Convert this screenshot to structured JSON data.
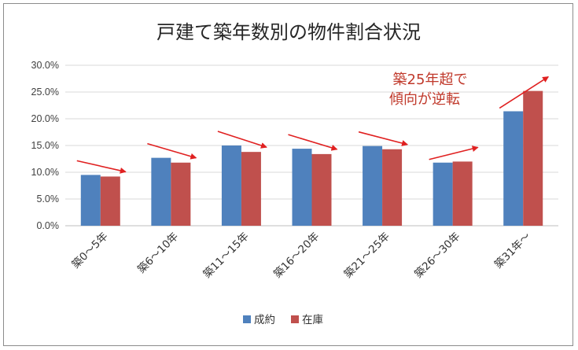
{
  "chart_data": {
    "type": "bar",
    "title": "戸建て築年数別の物件割合状況",
    "categories": [
      "築0～5年",
      "築6～10年",
      "築11～15年",
      "築16～20年",
      "築21～25年",
      "築26～30年",
      "築31年～"
    ],
    "series": [
      {
        "name": "成約",
        "color": "#4f81bd",
        "values": [
          9.5,
          12.7,
          15.0,
          14.4,
          14.9,
          11.8,
          21.4
        ]
      },
      {
        "name": "在庫",
        "color": "#c0504d",
        "values": [
          9.2,
          11.8,
          13.8,
          13.4,
          14.3,
          12.0,
          25.2
        ]
      }
    ],
    "ylim": [
      0,
      30
    ],
    "yticks": [
      "0.0%",
      "5.0%",
      "10.0%",
      "15.0%",
      "20.0%",
      "25.0%",
      "30.0%"
    ],
    "grid": true,
    "legend": "bottom",
    "annotation": {
      "lines": [
        "築25年超で",
        "傾向が逆転"
      ],
      "color": "#c0392b"
    },
    "trend_arrows": "red arrows on each category showing trend from 成約 to 在庫"
  }
}
